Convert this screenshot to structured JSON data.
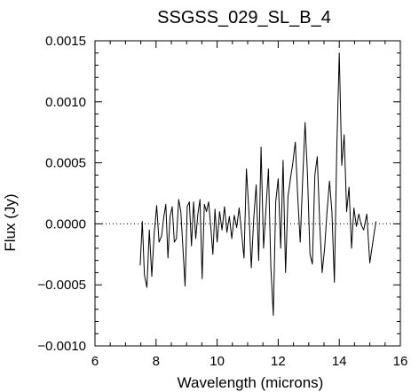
{
  "chart_data": {
    "type": "line",
    "title": "SSGSS_029_SL_B_4",
    "xlabel": "Wavelength (microns)",
    "ylabel": "Flux (Jy)",
    "xlim": [
      6,
      16
    ],
    "ylim": [
      -0.001,
      0.0015
    ],
    "xticks": [
      6,
      8,
      10,
      12,
      14,
      16
    ],
    "xtick_labels": [
      "6",
      "8",
      "10",
      "12",
      "14",
      "16"
    ],
    "yticks": [
      -0.001,
      -0.0005,
      0.0,
      0.0005,
      0.001,
      0.0015
    ],
    "ytick_labels": [
      "−0.0010",
      "−0.0005",
      "0.0000",
      "0.0005",
      "0.0010",
      "0.0015"
    ],
    "reference_line": {
      "y": 0.0,
      "style": "dotted"
    },
    "grid": false,
    "legend": "none",
    "line_color": "#000000",
    "series": [
      {
        "x": [
          7.48,
          7.55,
          7.62,
          7.7,
          7.78,
          7.86,
          7.94,
          8.02,
          8.1,
          8.18,
          8.25,
          8.32,
          8.39,
          8.46,
          8.53,
          8.6,
          8.67,
          8.74,
          8.81,
          8.88,
          8.95,
          9.02,
          9.09,
          9.16,
          9.23,
          9.3,
          9.37,
          9.44,
          9.51,
          9.58,
          9.65,
          9.72,
          9.79,
          9.86,
          9.93,
          10.0,
          10.08,
          10.16,
          10.24,
          10.32,
          10.4,
          10.48,
          10.56,
          10.64,
          10.72,
          10.8,
          10.88,
          10.96,
          11.04,
          11.12,
          11.2,
          11.28,
          11.36,
          11.44,
          11.52,
          11.6,
          11.68,
          11.76,
          11.84,
          11.92,
          12.0,
          12.08,
          12.16,
          12.24,
          12.32,
          12.4,
          12.48,
          12.56,
          12.64,
          12.72,
          12.8,
          12.88,
          12.96,
          13.04,
          13.12,
          13.2,
          13.28,
          13.36,
          13.44,
          13.52,
          13.6,
          13.68,
          13.76,
          13.84,
          13.92,
          14.0,
          14.08,
          14.16,
          14.24,
          14.32,
          14.4,
          14.48,
          14.56,
          14.64,
          14.72,
          14.8,
          14.9,
          15.0,
          15.1,
          15.2
        ],
        "values": [
          -0.00034,
          2e-05,
          -0.00042,
          -0.00052,
          -5e-05,
          -0.00043,
          -8e-05,
          0.00015,
          -0.00015,
          -0.0001,
          5e-05,
          0.00016,
          -0.00028,
          6e-05,
          0.00014,
          -0.00015,
          -0.00012,
          0.0002,
          0.0001,
          -0.0002,
          -0.00051,
          0.00014,
          0.00018,
          -0.00018,
          0.00018,
          -0.00012,
          8e-05,
          0.0002,
          -0.00045,
          0.00016,
          0.0001,
          0.00018,
          -2e-05,
          -0.00025,
          0.00012,
          -0.00015,
          0.0001,
          -5e-05,
          0.00014,
          -7e-05,
          6e-05,
          -0.00012,
          7e-05,
          -3e-05,
          0.00013,
          -7e-05,
          -0.00028,
          0.00045,
          0.0001,
          -0.00036,
          5e-05,
          0.00032,
          -0.0003,
          0.00063,
          -0.0002,
          0.00012,
          0.00045,
          -0.00035,
          -0.00075,
          0.00018,
          0.00037,
          -0.0002,
          0.00052,
          -0.0004,
          0.00022,
          0.00037,
          0.0005,
          0.00067,
          0.00022,
          -0.00015,
          0.00035,
          0.00083,
          0.0004,
          -0.00025,
          -0.00033,
          0.0004,
          0.00055,
          0.0,
          -0.0004,
          -0.0002,
          0.0001,
          0.00035,
          0.0001,
          -0.00048,
          0.00062,
          0.0014,
          0.00048,
          0.00073,
          0.0001,
          0.0003,
          -0.0002,
          0.00013,
          -2e-05,
          8e-05,
          -1e-05,
          -5e-05,
          8e-05,
          -0.00032,
          -0.00015,
          2e-05
        ]
      }
    ]
  }
}
